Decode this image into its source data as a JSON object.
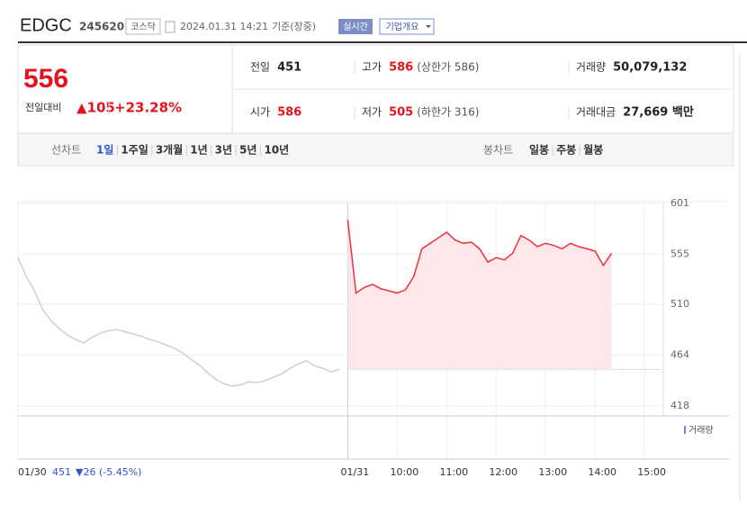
{
  "header": {
    "name": "EDGC",
    "code": "245620",
    "market": "코스닥",
    "datetime": "2024.01.31 14:21",
    "basis": "기준(장중)",
    "realtime": "실시간",
    "company": "기업개요"
  },
  "price": {
    "current": "556",
    "change_label": "전일대비",
    "change": "▲105",
    "rate": "+23.28%",
    "fields": [
      {
        "label": "전일",
        "value": "451"
      },
      {
        "label": "고가",
        "value": "586",
        "note": "(상한가 586)"
      },
      {
        "label": "거래량",
        "value": "50,079,132"
      },
      {
        "label": "시가",
        "value": "586"
      },
      {
        "label": "저가",
        "value": "505",
        "note": "(하한가 316)"
      },
      {
        "label": "거래대금",
        "value": "27,669 백만"
      }
    ]
  },
  "tabs": {
    "line": "선차트",
    "periods": [
      "1일",
      "1주일",
      "3개월",
      "1년",
      "3년",
      "5년",
      "10년"
    ],
    "candle": "봉차트",
    "candle_periods": [
      "일봉",
      "주봉",
      "월봉"
    ]
  },
  "chart_data": {
    "type": "line",
    "categories": [
      "01/30",
      null,
      null,
      null,
      null,
      null,
      null,
      null,
      null,
      null,
      null,
      null,
      null,
      null,
      null,
      null,
      null,
      null,
      null,
      null,
      null,
      null,
      null,
      null,
      null,
      null,
      null,
      null,
      null,
      null,
      null,
      null,
      null,
      null,
      null,
      null,
      null,
      null,
      null,
      null,
      "01/31",
      null,
      null,
      null,
      null,
      null,
      "10:00",
      null,
      null,
      null,
      null,
      null,
      "11:00",
      null,
      null,
      null,
      null,
      null,
      "12:00",
      null,
      null,
      null,
      null,
      null,
      "13:00",
      null,
      null,
      null,
      null,
      null,
      "14:00",
      null,
      null,
      null,
      null,
      null,
      "15:00",
      null,
      null,
      null
    ],
    "series": [
      {
        "name": "01/30",
        "color": "#cfcfcf",
        "values": [
          552,
          535,
          522,
          505,
          495,
          488,
          482,
          478,
          475,
          480,
          484,
          486,
          487,
          485,
          483,
          481,
          478,
          476,
          473,
          470,
          466,
          460,
          455,
          448,
          442,
          438,
          436,
          437,
          440,
          439,
          441,
          444,
          447,
          452,
          456,
          459,
          454,
          452,
          449,
          451,
          null,
          null,
          null,
          null,
          null,
          null,
          null,
          null,
          null,
          null,
          null,
          null,
          null,
          null,
          null,
          null,
          null,
          null,
          null,
          null,
          null,
          null,
          null,
          null,
          null,
          null,
          null,
          null,
          null,
          null,
          null,
          null,
          null,
          null,
          null,
          null,
          null,
          null,
          null,
          null
        ]
      },
      {
        "name": "01/31",
        "color": "#f0313a",
        "values": [
          null,
          null,
          null,
          null,
          null,
          null,
          null,
          null,
          null,
          null,
          null,
          null,
          null,
          null,
          null,
          null,
          null,
          null,
          null,
          null,
          null,
          null,
          null,
          null,
          null,
          null,
          null,
          null,
          null,
          null,
          null,
          null,
          null,
          null,
          null,
          null,
          null,
          null,
          null,
          null,
          586,
          520,
          525,
          528,
          524,
          522,
          520,
          523,
          535,
          560,
          565,
          570,
          575,
          568,
          565,
          566,
          560,
          548,
          552,
          550,
          556,
          572,
          568,
          562,
          565,
          563,
          560,
          565,
          562,
          560,
          558,
          545,
          556,
          null,
          null,
          null,
          null,
          null,
          null,
          null
        ]
      }
    ],
    "prev_close": 451,
    "ylim": [
      418,
      601
    ],
    "yticks": [
      418,
      464,
      510,
      555,
      601
    ],
    "grid": true,
    "volume_label": "거래량",
    "footer": {
      "close": "451",
      "change": "▼26 (-5.45%)"
    }
  }
}
